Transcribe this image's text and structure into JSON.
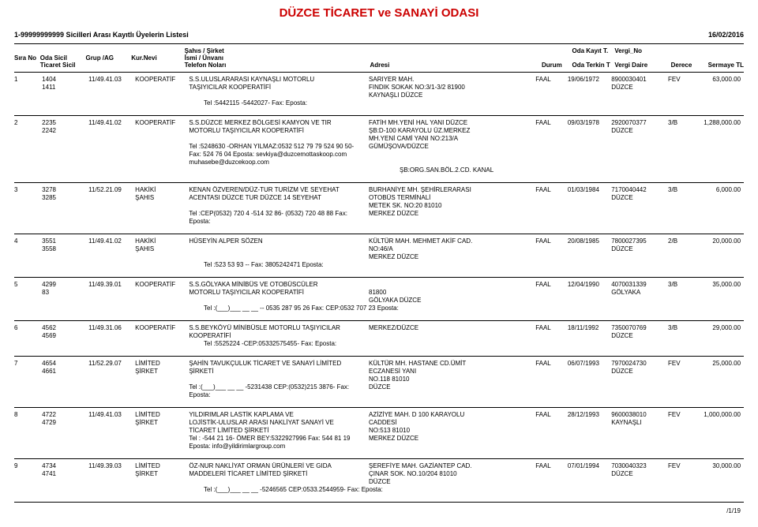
{
  "doc_title": "DÜZCE TİCARET ve SANAYİ ODASI",
  "list_title": "1-99999999999 Sicilleri Arası Kayıtlı Üyelerin Listesi",
  "print_date": "16/02/2016",
  "footer_page": "/1/19",
  "headers": {
    "sahis": "Şahıs / Şirket",
    "sira": "Sıra No",
    "oda_sicil": "Oda Sicil",
    "ticaret_sicil": "Ticaret Sicil",
    "grup": "Grup /AG",
    "kur": "Kur.Nevi",
    "isim": "İsmi / Ünvanı",
    "telefon": "Telefon Noları",
    "adresi": "Adresi",
    "durum": "Durum",
    "kayit_t": "Oda Kayıt T.",
    "terkin_t": "Oda Terkin T",
    "vergi_no": "Vergi_No",
    "vergi_daire": "Vergi Daire",
    "derece": "Derece",
    "sermaye": "Sermaye TL"
  },
  "rows": [
    {
      "sira": "1",
      "oda_sicil": "1404",
      "ticaret_sicil": "1411",
      "grup": "11/49.41.03",
      "kur": "KOOPERATİF",
      "isim1": "S.S.ULUSLARARASI KAYNAŞLI MOTORLU",
      "isim2": "TAŞIYICILAR KOOPERATİFİ",
      "tel": "Tel :5442115 -5442027-  Fax:  Eposta:",
      "adres1": "SARIYER MAH.",
      "adres2": "FINDIK SOKAK NO:3/1-3/2 81900",
      "adres3": " KAYNAŞLI DÜZCE",
      "durum": "FAAL",
      "kayit": "19/06/1972",
      "vergi_no": "8900030401",
      "vergi_daire": "DÜZCE",
      "derece": "FEV",
      "sermaye": "63,000.00"
    },
    {
      "sira": "2",
      "oda_sicil": "2235",
      "ticaret_sicil": "2242",
      "grup": "11/49.41.02",
      "kur": "KOOPERATİF",
      "isim1": "S.S.DÜZCE MERKEZ BÖLGESİ KAMYON VE TIR",
      "isim2": "MOTORLU TAŞIYICILAR KOOPERATİFİ",
      "tel": "Tel :5248630 -ORHAN YILMAZ:0532 512 79 79         524 90 50-  Fax: 524 76 04  Eposta: sevkiya@duzcemottaskoop.com muhasebe@duzcekoop.com",
      "adres1": "FATİH  MH.YENİ  HAL  YANI  DÜZCE",
      "adres2": "ŞB:D-100 KARAYOLU    ÜZ.MERKEZ",
      "adres3": "MH.YENİ    CAMİ    YANI   NO:213/A",
      "adres4": "GÜMÜŞOVA/DÜZCE",
      "adres5": "ŞB:ORG.SAN.BÖL.2.CD.   KANAL",
      "durum": "FAAL",
      "kayit": "09/03/1978",
      "vergi_no": "2920070377",
      "vergi_daire": "DÜZCE",
      "derece": "3/B",
      "sermaye": "1,288,000.00"
    },
    {
      "sira": "3",
      "oda_sicil": "3278",
      "ticaret_sicil": "3285",
      "grup": "11/52.21.09",
      "kur": "HAKİKİ ŞAHIS",
      "isim1": "KENAN ÖZVEREN/DÜZ-TUR TURİZM VE SEYEHAT",
      "isim2": "ACENTASI DÜZCE TUR DÜZCE 14 SEYEHAT",
      "tel": "Tel :CEP(0532) 720 4 -514 32 86- (0532) 720 48 88 Fax:  Eposta:",
      "adres1": "BURHANİYE  MH.      ŞEHİRLERARASI",
      "adres2": "OTOBÜS TERMİNALİ",
      "adres3": "METEK SK. NO:20 81010",
      "adres4": " MERKEZ DÜZCE",
      "durum": "FAAL",
      "kayit": "01/03/1984",
      "vergi_no": "7170040442",
      "vergi_daire": "DÜZCE",
      "derece": "3/B",
      "sermaye": "6,000.00"
    },
    {
      "sira": "4",
      "oda_sicil": "3551",
      "ticaret_sicil": "3558",
      "grup": "11/49.41.02",
      "kur": "HAKİKİ ŞAHIS",
      "isim1": "HÜSEYİN ALPER SÖZEN",
      "isim2": "",
      "tel": "Tel :523 53 93 --  Fax: 3805242471 Eposta:",
      "adres1": "KÜLTÜR MAH. MEHMET AKİF CAD.",
      "adres2": "NO:46/A",
      "adres3": " MERKEZ DÜZCE",
      "durum": "FAAL",
      "kayit": "20/08/1985",
      "vergi_no": "7800027395",
      "vergi_daire": "DÜZCE",
      "derece": "2/B",
      "sermaye": "20,000.00"
    },
    {
      "sira": "5",
      "oda_sicil": "4299",
      "ticaret_sicil": "83",
      "grup": "11/49.39.01",
      "kur": "KOOPERATİF",
      "isim1": "S.S.GÖLYAKA MİNİBÜS VE OTOBÜSCÜLER",
      "isim2": "MOTORLU TAŞIYICILAR KOOPERATİFİ",
      "tel": "Tel :(___)___ __ __ -- 0535 287 95 26 Fax: CEP:0532 707 23 Eposta:",
      "adres1": "",
      "adres2": "81800",
      "adres3": " GÖLYAKA DÜZCE",
      "durum": "FAAL",
      "kayit": "12/04/1990",
      "vergi_no": "4070031339",
      "vergi_daire": "GÖLYAKA",
      "derece": "3/B",
      "sermaye": "35,000.00"
    },
    {
      "sira": "6",
      "oda_sicil": "4562",
      "ticaret_sicil": "4569",
      "grup": "11/49.31.06",
      "kur": "KOOPERATİF",
      "isim1": "S.S.BEYKÖYÜ MİNİBÜSLE MOTORLU TAŞIYICILAR",
      "isim2": "KOOPERATİFİ",
      "tel": "Tel :5525224 -CEP:05332575455-  Fax:  Eposta:",
      "adres1": "MERKEZ/DÜZCE",
      "adres2": "",
      "adres3": "",
      "durum": "FAAL",
      "kayit": "18/11/1992",
      "vergi_no": "7350070769",
      "vergi_daire": "DÜZCE",
      "derece": "3/B",
      "sermaye": "29,000.00"
    },
    {
      "sira": "7",
      "oda_sicil": "4654",
      "ticaret_sicil": "4661",
      "grup": "11/52.29.07",
      "kur": "LİMİTED ŞİRKET",
      "isim1": "ŞAHİN TAVUKÇULUK TİCARET VE SANAYİ LİMİTED",
      "isim2": "ŞİRKETİ",
      "tel": "Tel :(___)___ __ __ -5231438  CEP:(0532)215 3876-  Fax:  Eposta:",
      "adres1": "KÜLTÜR   MH.    HASTANE   CD.ÜMİT",
      "adres2": "ECZANESİ YANI",
      "adres3": "NO.118 81010",
      "adres4": " DÜZCE",
      "durum": "FAAL",
      "kayit": "06/07/1993",
      "vergi_no": "7970024730",
      "vergi_daire": "DÜZCE",
      "derece": "FEV",
      "sermaye": "25,000.00"
    },
    {
      "sira": "8",
      "oda_sicil": "4722",
      "ticaret_sicil": "4729",
      "grup": "11/49.41.03",
      "kur": "LİMİTED ŞİRKET",
      "isim1": "YILDIRIMLAR LASTİK KAPLAMA VE",
      "isim2": "LOJİSTİK-ULUSLAR ARASI NAKLİYAT SANAYİ VE",
      "isim3": "TİCARET LİMİTED ŞİRKETİ",
      "tel": "Tel : -544 21 16- ÖMER BEY:5322927996 Fax: 544 81 19 Eposta: info@yildirimlargroup.com",
      "adres1": "AZİZİYE    MAH.    D    100 KARAYOLU",
      "adres2": "CADDESİ",
      "adres3": "NO:513 81010",
      "adres4": " MERKEZ DÜZCE",
      "durum": "FAAL",
      "kayit": "28/12/1993",
      "vergi_no": "9600038010",
      "vergi_daire": "KAYNAŞLI",
      "derece": "FEV",
      "sermaye": "1,000,000.00"
    },
    {
      "sira": "9",
      "oda_sicil": "4734",
      "ticaret_sicil": "4741",
      "grup": "11/49.39.03",
      "kur": "LİMİTED ŞİRKET",
      "isim1": "ÖZ-NUR NAKLİYAT ORMAN ÜRÜNLERİ VE GIDA",
      "isim2": "MADDELERİ TİCARET LİMİTED ŞİRKETİ",
      "tel": "Tel :(___)___ __ __ -5246565  CEP:0533.2544959-  Fax:  Eposta:",
      "adres1": "ŞEREFİYE MAH. GAZİANTEP CAD.",
      "adres2": "ÇINAR SOK. NO.10/204 81010",
      "adres3": " DÜZCE",
      "durum": "FAAL",
      "kayit": "07/01/1994",
      "vergi_no": "7030040323",
      "vergi_daire": "DÜZCE",
      "derece": "FEV",
      "sermaye": "30,000.00"
    }
  ]
}
